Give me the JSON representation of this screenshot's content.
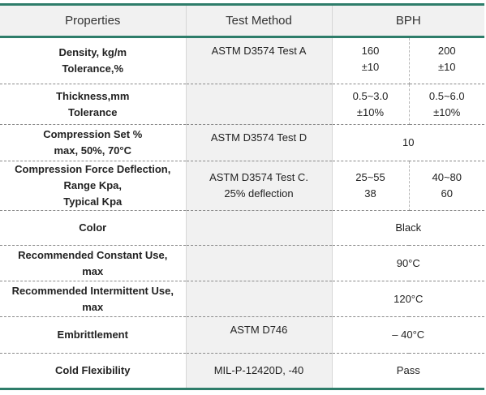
{
  "headers": {
    "properties": "Properties",
    "method": "Test Method",
    "product": "BPH"
  },
  "rows": [
    {
      "prop": [
        "Density, kg/m",
        "Tolerance,%"
      ],
      "method": [
        "ASTM D3574 Test A"
      ],
      "v1": [
        "160",
        "±10"
      ],
      "v2": [
        "200",
        "±10"
      ]
    },
    {
      "prop": [
        "Thickness,mm",
        "Tolerance"
      ],
      "method": [],
      "v1": [
        "0.5~3.0",
        "±10%"
      ],
      "v2": [
        "0.5~6.0",
        "±10%"
      ]
    },
    {
      "prop": [
        "Compression Set %",
        "max,  50%, 70°C"
      ],
      "method": [
        "ASTM D3574  Test D"
      ],
      "value": "10"
    },
    {
      "prop": [
        "Compression Force Deflection,",
        "Range Kpa,",
        "Typical Kpa"
      ],
      "method": [
        "ASTM D3574  Test C.",
        "25% deflection"
      ],
      "v1": [
        "25~55",
        "38"
      ],
      "v2": [
        "40~80",
        "60"
      ]
    },
    {
      "prop": [
        "Color"
      ],
      "method": [],
      "value": "Black"
    },
    {
      "prop": [
        "Recommended Constant Use,",
        "max"
      ],
      "method": [],
      "value": "90°C"
    },
    {
      "prop": [
        "Recommended Intermittent Use,",
        "max"
      ],
      "method": [],
      "value": "120°C"
    },
    {
      "prop": [
        "Embrittlement"
      ],
      "method": [
        "ASTM D746"
      ],
      "value": "– 40°C"
    },
    {
      "prop": [
        "Cold Flexibility"
      ],
      "method": [
        "MIL-P-12420D, -40"
      ],
      "value": "Pass"
    }
  ]
}
